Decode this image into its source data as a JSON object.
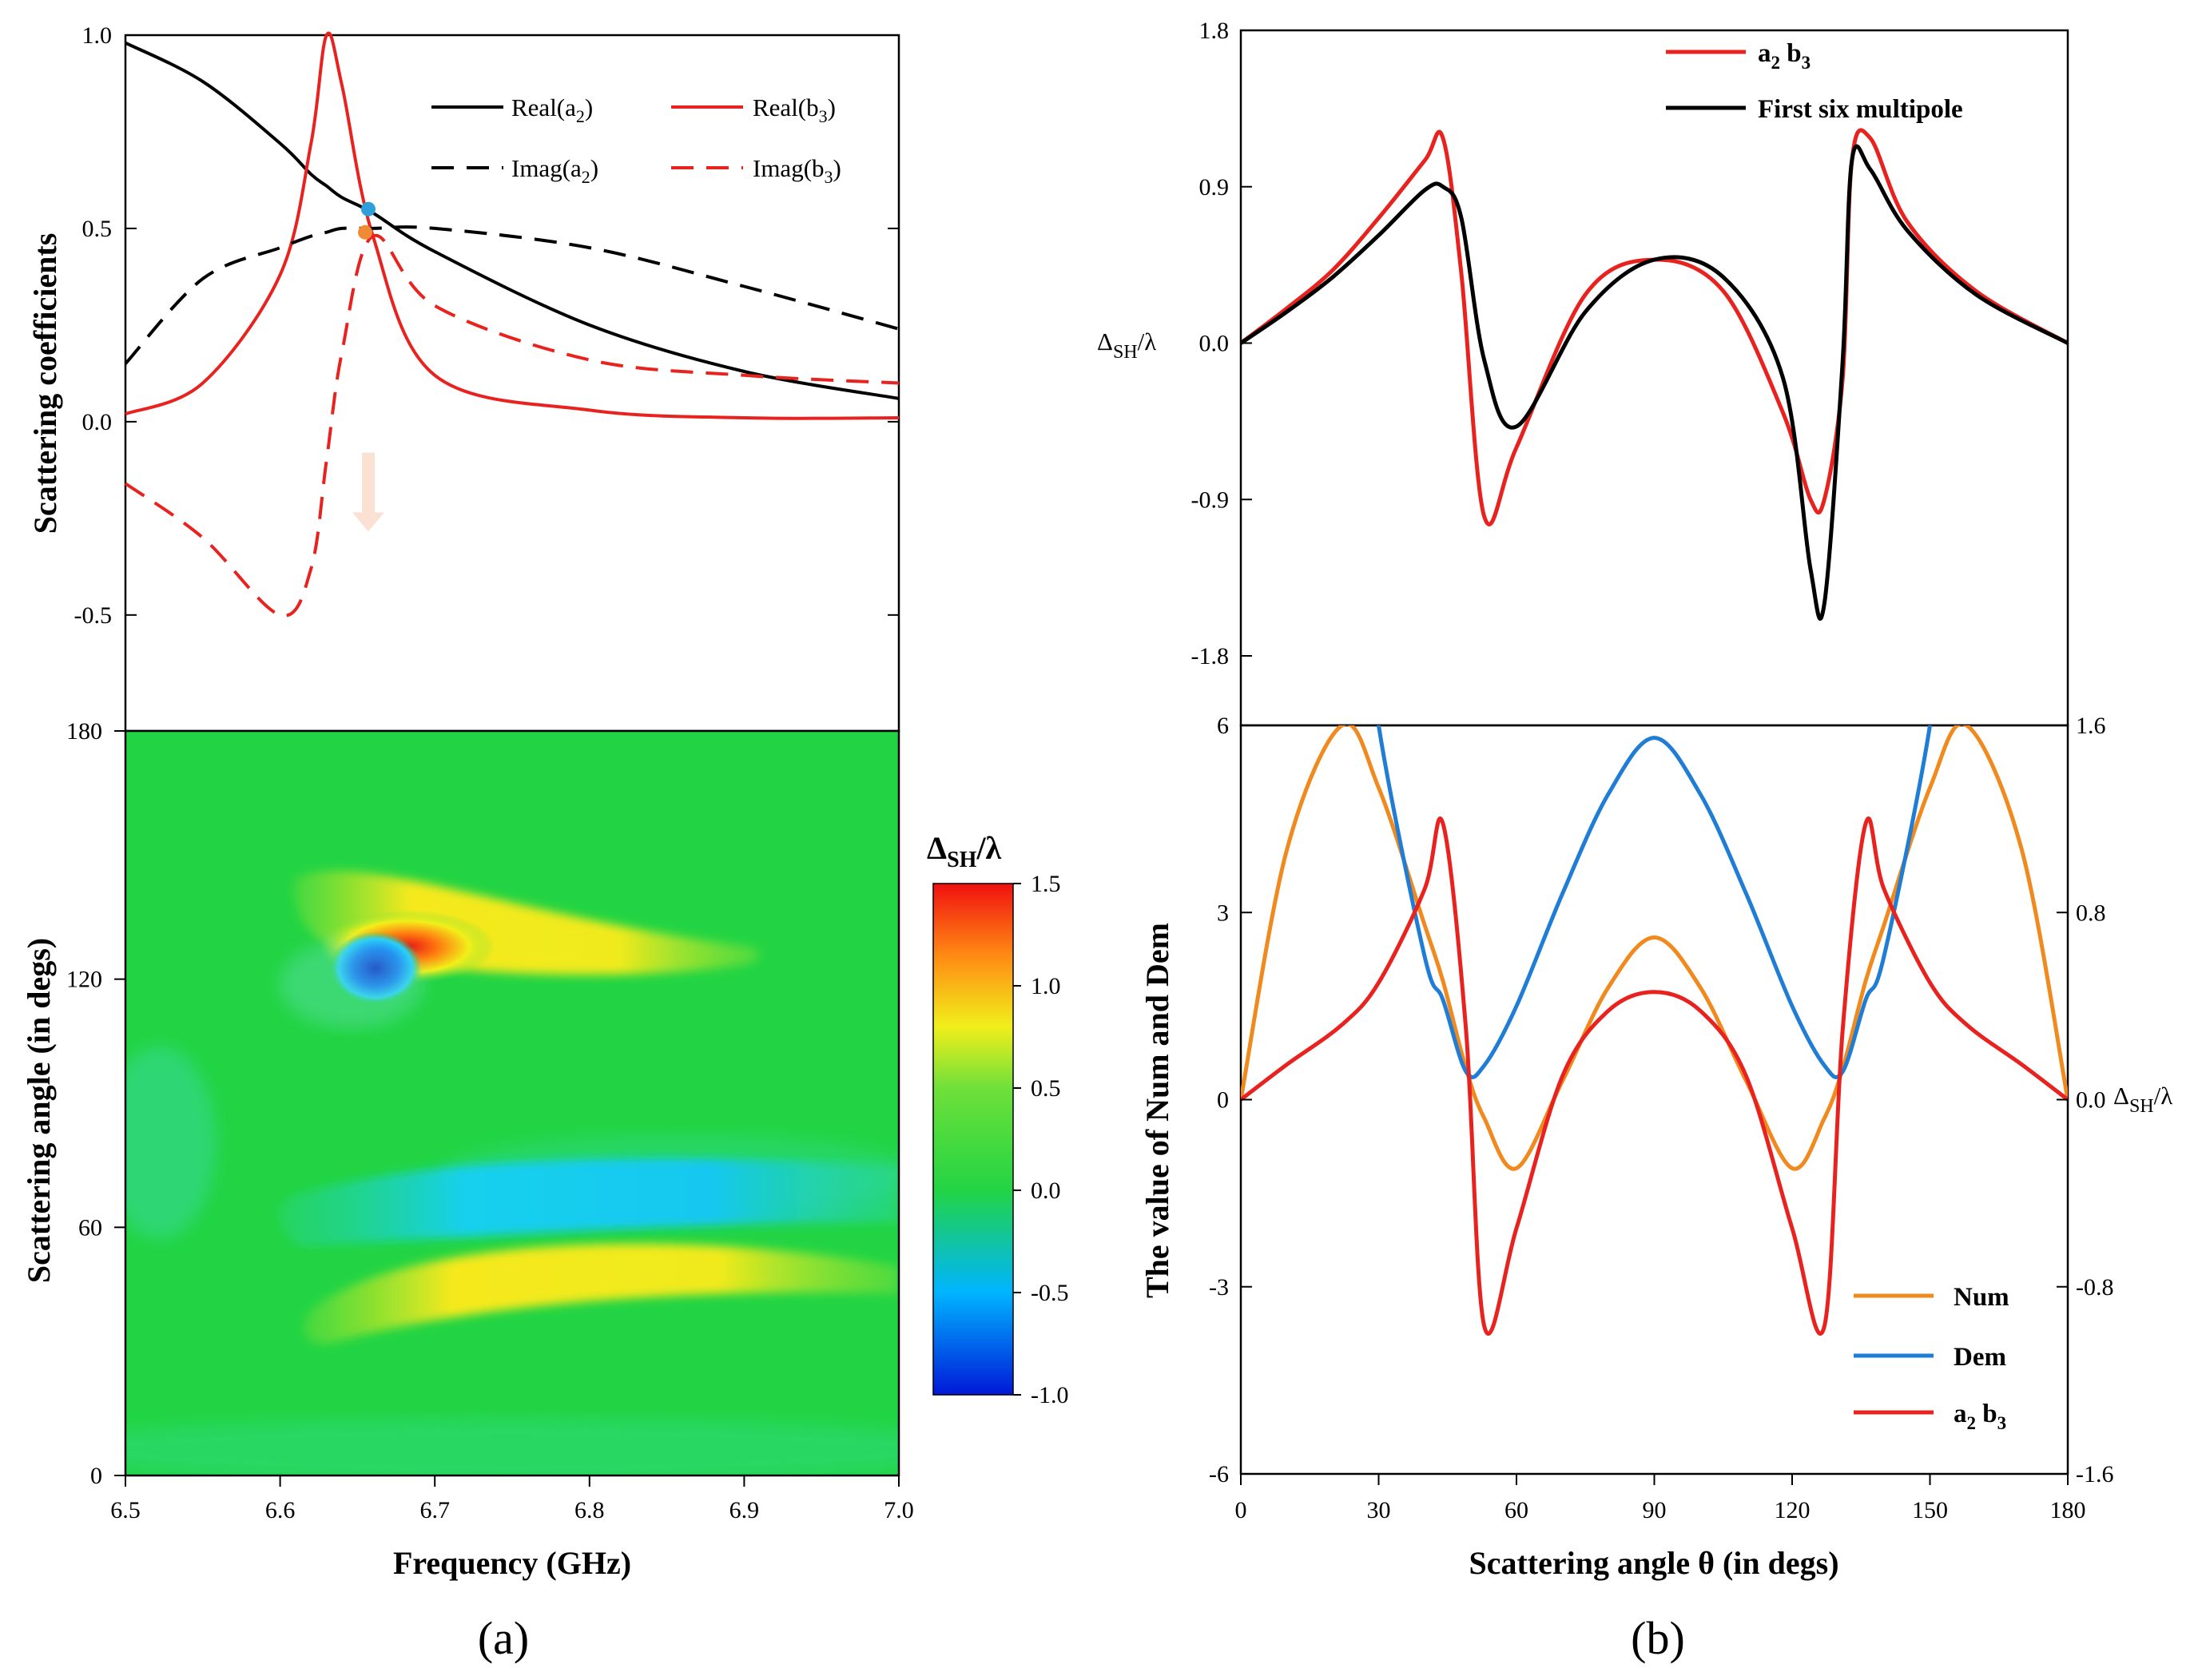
{
  "chart_data": [
    {
      "id": "a-top",
      "type": "line",
      "title": "",
      "xlabel": "",
      "ylabel": "Scattering coefficients",
      "xlim": [
        6.5,
        7.0
      ],
      "ylim": [
        -0.8,
        1.0
      ],
      "yticks": [
        "1.0",
        "0.5",
        "0.0",
        "-0.5"
      ],
      "x": [
        6.5,
        6.55,
        6.6,
        6.62,
        6.63,
        6.64,
        6.66,
        6.7,
        6.8,
        6.9,
        7.0
      ],
      "series": [
        {
          "name": "Real(a₂)",
          "label_main": "Real(a",
          "label_sub": "2",
          "label_end": ")",
          "color": "#000000",
          "dash": "solid",
          "values": [
            0.98,
            0.88,
            0.72,
            0.64,
            0.61,
            0.58,
            0.54,
            0.44,
            0.25,
            0.13,
            0.06
          ]
        },
        {
          "name": "Real(b₃)",
          "label_main": "Real(b",
          "label_sub": "3",
          "label_end": ")",
          "color": "#e8231f",
          "dash": "solid",
          "values": [
            0.02,
            0.1,
            0.38,
            0.72,
            1.0,
            0.87,
            0.48,
            0.12,
            0.03,
            0.01,
            0.01
          ]
        },
        {
          "name": "Imag(a₂)",
          "label_main": "Imag(a",
          "label_sub": "2",
          "label_end": ")",
          "color": "#000000",
          "dash": "dashed",
          "values": [
            0.15,
            0.37,
            0.45,
            0.48,
            0.49,
            0.5,
            0.5,
            0.5,
            0.45,
            0.35,
            0.24
          ]
        },
        {
          "name": "Imag(b₃)",
          "label_main": "Imag(b",
          "label_sub": "3",
          "label_end": ")",
          "color": "#e8231f",
          "dash": "dashed",
          "values": [
            -0.16,
            -0.3,
            -0.5,
            -0.38,
            -0.1,
            0.18,
            0.48,
            0.3,
            0.16,
            0.12,
            0.1
          ]
        }
      ],
      "markers": [
        {
          "x": 6.657,
          "y": 0.55,
          "color": "#2e9fd8"
        },
        {
          "x": 6.655,
          "y": 0.49,
          "color": "#f08a33"
        }
      ],
      "annotation_arrow": {
        "x": 6.657,
        "y_from": -0.08,
        "y_to": -0.28,
        "color": "#fbe1d3"
      }
    },
    {
      "id": "a-bottom",
      "type": "heatmap",
      "xlabel": "Frequency (GHz)",
      "ylabel": "Scattering angle  (in degs)",
      "xlim": [
        6.5,
        7.0
      ],
      "ylim": [
        0,
        180
      ],
      "xticks": [
        "6.5",
        "6.6",
        "6.7",
        "6.8",
        "6.9",
        "7.0"
      ],
      "yticks": [
        "180",
        "120",
        "60",
        "0"
      ],
      "colorbar": {
        "title_main": "Δ",
        "title_sub": "SH",
        "title_end": "/λ",
        "range": [
          -1.0,
          1.5
        ],
        "ticks": [
          "1.5",
          "1.0",
          "0.5",
          "0.0",
          "-0.5",
          "-1.0"
        ]
      },
      "features": [
        {
          "kind": "positive-streak",
          "freq": [
            6.62,
            6.9
          ],
          "angle": [
            122,
            145
          ],
          "peak": 1.5,
          "peak_at": [
            6.68,
            128
          ]
        },
        {
          "kind": "negative-spot",
          "freq": 6.665,
          "angle": 123,
          "value": -1.0
        },
        {
          "kind": "negative-streak",
          "freq": [
            6.62,
            7.0
          ],
          "angle": [
            58,
            70
          ],
          "value": -0.4
        },
        {
          "kind": "positive-streak",
          "freq": [
            6.62,
            7.0
          ],
          "angle": [
            36,
            56
          ],
          "value": 0.9
        }
      ]
    },
    {
      "id": "b-top",
      "type": "line",
      "ylabel_main": "Δ",
      "ylabel_sub": "SH",
      "ylabel_end": "/λ",
      "xlim": [
        0,
        180
      ],
      "ylim": [
        -2.2,
        1.8
      ],
      "yticks": [
        "1.8",
        "0.9",
        "0.0",
        "-0.9",
        "-1.8"
      ],
      "x": [
        0,
        10,
        20,
        30,
        40,
        44,
        48,
        53,
        60,
        75,
        90,
        105,
        118,
        124,
        127,
        131,
        133,
        137,
        145,
        160,
        180
      ],
      "series": [
        {
          "name": "a₂ b₃",
          "label_main": "a",
          "label_sub": "2",
          "label_mid": " b",
          "label_sub2": "3",
          "color": "#e8231f",
          "values": [
            0.0,
            0.2,
            0.42,
            0.72,
            1.05,
            1.18,
            0.4,
            -1.0,
            -0.6,
            0.28,
            0.48,
            0.3,
            -0.4,
            -0.9,
            -0.9,
            -0.2,
            1.05,
            1.18,
            0.7,
            0.3,
            0.0
          ]
        },
        {
          "name": "First six multipole",
          "color": "#000000",
          "values": [
            0.0,
            0.18,
            0.38,
            0.62,
            0.88,
            0.9,
            0.72,
            -0.1,
            -0.48,
            0.18,
            0.48,
            0.38,
            -0.2,
            -1.3,
            -1.5,
            -0.1,
            1.05,
            1.0,
            0.65,
            0.28,
            0.0
          ]
        }
      ]
    },
    {
      "id": "b-bottom",
      "type": "line",
      "xlabel": "Scattering angle θ (in degs)",
      "ylabel": "The value of  Num and  Dem",
      "ylabel_right_main": "Δ",
      "ylabel_right_sub": "SH",
      "ylabel_right_end": "/λ",
      "xlim": [
        0,
        180
      ],
      "ylim": [
        -6,
        6
      ],
      "ylim_right": [
        -1.6,
        1.6
      ],
      "xticks": [
        "0",
        "30",
        "60",
        "90",
        "120",
        "150",
        "180"
      ],
      "yticks": [
        "6",
        "3",
        "0",
        "-3",
        "-6"
      ],
      "yticks_right": [
        "1.6",
        "0.8",
        "0.0",
        "-0.8",
        "-1.6"
      ],
      "x": [
        0,
        10,
        22,
        30,
        40,
        44,
        49,
        53,
        60,
        70,
        80,
        90,
        100,
        110,
        120,
        127,
        131,
        136,
        140,
        150,
        158,
        170,
        180
      ],
      "series": [
        {
          "name": "Num",
          "color": "#f08a1e",
          "axis": "left",
          "values": [
            0.0,
            4.0,
            6.0,
            5.0,
            2.8,
            1.9,
            0.5,
            -0.3,
            -1.1,
            0.3,
            1.8,
            2.6,
            1.8,
            0.3,
            -1.1,
            -0.3,
            0.5,
            1.9,
            2.8,
            5.0,
            6.0,
            4.0,
            0.0
          ]
        },
        {
          "name": "Dem",
          "color": "#1f7dd6",
          "axis": "left",
          "values": [
            null,
            null,
            null,
            6.0,
            2.3,
            1.6,
            0.45,
            0.55,
            1.5,
            3.3,
            4.9,
            5.8,
            4.9,
            3.3,
            1.5,
            0.55,
            0.45,
            1.6,
            2.3,
            6.0,
            null,
            null,
            null
          ]
        },
        {
          "name": "a₂ b₃",
          "label_main": "a",
          "label_sub": "2",
          "label_mid": " b",
          "label_sub2": "3",
          "color": "#e8231f",
          "axis": "right",
          "values": [
            0.0,
            0.15,
            0.32,
            0.5,
            0.9,
            1.18,
            0.3,
            -0.97,
            -0.55,
            0.1,
            0.38,
            0.46,
            0.38,
            0.1,
            -0.55,
            -0.97,
            0.3,
            1.18,
            0.9,
            0.5,
            0.32,
            0.15,
            0.0
          ]
        }
      ]
    }
  ],
  "panel_labels": [
    "(a)",
    "(b)"
  ]
}
